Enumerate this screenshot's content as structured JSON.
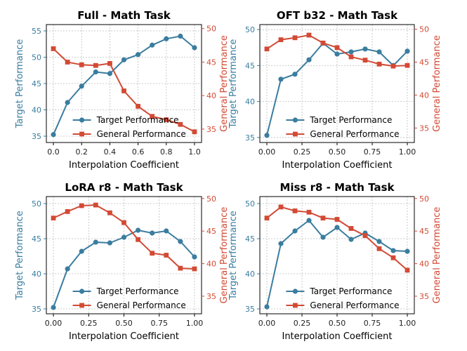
{
  "colors": {
    "target": "#3a7d9f",
    "general": "#d24a35",
    "grid": "#bdbdbd"
  },
  "chart_data": [
    {
      "type": "line",
      "title": "Full - Math Task",
      "xlabel": "Interpolation Coefficient",
      "ylabel": "Target Performance",
      "y2label": "General Performance",
      "xlim": [
        -0.05,
        1.05
      ],
      "ylim": [
        33.8,
        56.2
      ],
      "y2lim": [
        33.0,
        50.6
      ],
      "xticks": [
        0.0,
        0.2,
        0.4,
        0.6,
        0.8,
        1.0
      ],
      "xtick_labels": [
        "0.0",
        "0.2",
        "0.4",
        "0.6",
        "0.8",
        "1.0"
      ],
      "yticks": [
        35,
        40,
        45,
        50,
        55
      ],
      "y2ticks": [
        35,
        40,
        45,
        50
      ],
      "x": [
        0.0,
        0.1,
        0.2,
        0.3,
        0.4,
        0.5,
        0.6,
        0.7,
        0.8,
        0.9,
        1.0
      ],
      "series": [
        {
          "name": "Target Performance",
          "axis": "left",
          "marker": "circle",
          "values": [
            35.3,
            41.4,
            44.5,
            47.2,
            46.9,
            49.5,
            50.5,
            52.3,
            53.5,
            54.0,
            51.8
          ]
        },
        {
          "name": "General Performance",
          "axis": "right",
          "marker": "square",
          "values": [
            47.0,
            45.0,
            44.6,
            44.5,
            44.8,
            40.7,
            38.4,
            36.9,
            36.4,
            35.7,
            34.6
          ]
        }
      ],
      "grid": true,
      "legend": "lower-right"
    },
    {
      "type": "line",
      "title": "OFT b32 - Math Task",
      "xlabel": "Interpolation Coefficient",
      "ylabel": "Target Performance",
      "y2label": "General Performance",
      "xlim": [
        -0.05,
        1.05
      ],
      "ylim": [
        34.3,
        50.7
      ],
      "y2lim": [
        32.8,
        50.7
      ],
      "xticks": [
        0.0,
        0.25,
        0.5,
        0.75,
        1.0
      ],
      "xtick_labels": [
        "0.00",
        "0.25",
        "0.50",
        "0.75",
        "1.00"
      ],
      "yticks": [
        35,
        40,
        45,
        50
      ],
      "y2ticks": [
        35,
        40,
        45,
        50
      ],
      "x": [
        0.0,
        0.1,
        0.2,
        0.3,
        0.4,
        0.5,
        0.6,
        0.7,
        0.8,
        0.9,
        1.0
      ],
      "series": [
        {
          "name": "Target Performance",
          "axis": "left",
          "marker": "circle",
          "values": [
            35.3,
            43.1,
            43.8,
            45.8,
            48.1,
            46.6,
            46.9,
            47.3,
            46.9,
            45.0,
            47.0
          ]
        },
        {
          "name": "General Performance",
          "axis": "right",
          "marker": "square",
          "values": [
            47.0,
            48.4,
            48.7,
            49.1,
            47.9,
            47.2,
            45.8,
            45.3,
            44.7,
            44.4,
            44.5
          ]
        }
      ],
      "grid": true,
      "legend": "lower-right"
    },
    {
      "type": "line",
      "title": "LoRA r8 - Math Task",
      "xlabel": "Interpolation Coefficient",
      "ylabel": "Target Performance",
      "y2label": "General Performance",
      "xlim": [
        -0.05,
        1.05
      ],
      "ylim": [
        34.3,
        51.0
      ],
      "y2lim": [
        32.3,
        50.3
      ],
      "xticks": [
        0.0,
        0.25,
        0.5,
        0.75,
        1.0
      ],
      "xtick_labels": [
        "0.00",
        "0.25",
        "0.50",
        "0.75",
        "1.00"
      ],
      "yticks": [
        35,
        40,
        45,
        50
      ],
      "y2ticks": [
        35,
        40,
        45,
        50
      ],
      "x": [
        0.0,
        0.1,
        0.2,
        0.3,
        0.4,
        0.5,
        0.6,
        0.7,
        0.8,
        0.9,
        1.0
      ],
      "series": [
        {
          "name": "Target Performance",
          "axis": "left",
          "marker": "circle",
          "values": [
            35.2,
            40.7,
            43.2,
            44.5,
            44.4,
            45.2,
            46.2,
            45.8,
            46.1,
            44.6,
            42.4
          ]
        },
        {
          "name": "General Performance",
          "axis": "right",
          "marker": "square",
          "values": [
            47.0,
            48.0,
            48.9,
            49.0,
            47.8,
            46.3,
            43.7,
            41.6,
            41.3,
            39.3,
            39.2
          ]
        }
      ],
      "grid": true,
      "legend": "lower-right"
    },
    {
      "type": "line",
      "title": "Miss r8 - Math Task",
      "xlabel": "Interpolation Coefficient",
      "ylabel": "Target Performance",
      "y2label": "General Performance",
      "xlim": [
        -0.05,
        1.05
      ],
      "ylim": [
        34.3,
        51.0
      ],
      "y2lim": [
        32.3,
        50.3
      ],
      "xticks": [
        0.0,
        0.25,
        0.5,
        0.75,
        1.0
      ],
      "xtick_labels": [
        "0.00",
        "0.25",
        "0.50",
        "0.75",
        "1.00"
      ],
      "yticks": [
        35,
        40,
        45,
        50
      ],
      "y2ticks": [
        35,
        40,
        45,
        50
      ],
      "x": [
        0.0,
        0.1,
        0.2,
        0.3,
        0.4,
        0.5,
        0.6,
        0.7,
        0.8,
        0.9,
        1.0
      ],
      "series": [
        {
          "name": "Target Performance",
          "axis": "left",
          "marker": "circle",
          "values": [
            35.3,
            44.3,
            46.1,
            47.6,
            45.2,
            46.6,
            44.9,
            45.8,
            44.6,
            43.3,
            43.2
          ]
        },
        {
          "name": "General Performance",
          "axis": "right",
          "marker": "square",
          "values": [
            47.0,
            48.7,
            48.1,
            47.9,
            47.0,
            46.8,
            45.4,
            44.3,
            42.3,
            40.9,
            39.0
          ]
        }
      ],
      "grid": true,
      "legend": "lower-right"
    }
  ]
}
